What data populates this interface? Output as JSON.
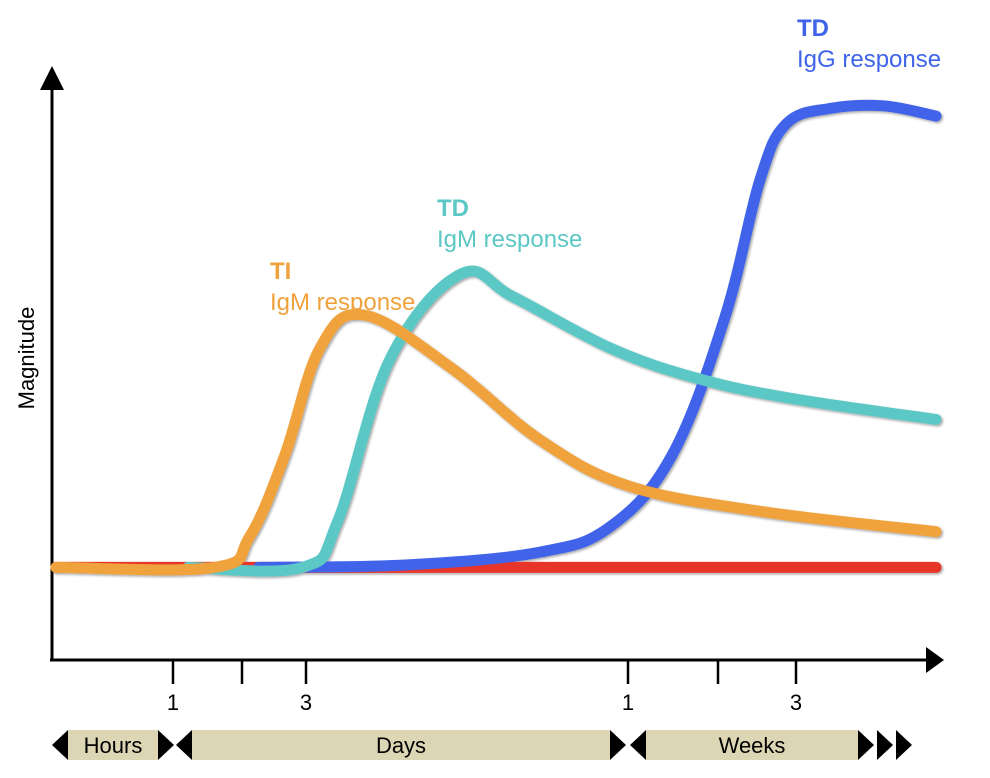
{
  "chart_data": {
    "type": "line",
    "title": "",
    "ylabel": "Magnitude",
    "xlabel": "",
    "x_ticks": [
      {
        "label": "1",
        "scale": "hours"
      },
      {
        "label": "",
        "scale": "days"
      },
      {
        "label": "3",
        "scale": "days"
      },
      {
        "label": "1",
        "scale": "weeks"
      },
      {
        "label": "",
        "scale": "weeks"
      },
      {
        "label": "3",
        "scale": "weeks"
      }
    ],
    "time_segments": [
      {
        "name": "hours",
        "label": "Hours"
      },
      {
        "name": "days",
        "label": "Days"
      },
      {
        "name": "weeks",
        "label": "Weeks"
      }
    ],
    "x_domain": [
      0,
      10
    ],
    "y_domain": [
      0,
      10
    ],
    "series": [
      {
        "name": "baseline",
        "title": "",
        "subtitle": "",
        "color": "#e8352b",
        "points": [
          [
            0.0,
            0.6
          ],
          [
            10.0,
            0.6
          ]
        ]
      },
      {
        "name": "TD IgG response",
        "title": "TD",
        "subtitle": "IgG response",
        "color": "#3f64ea",
        "points": [
          [
            2.3,
            0.6
          ],
          [
            4.0,
            0.65
          ],
          [
            5.5,
            0.9
          ],
          [
            6.3,
            1.4
          ],
          [
            7.0,
            2.8
          ],
          [
            7.6,
            5.5
          ],
          [
            8.0,
            8.2
          ],
          [
            8.3,
            9.3
          ],
          [
            8.8,
            9.6
          ],
          [
            9.4,
            9.65
          ],
          [
            10.0,
            9.45
          ]
        ]
      },
      {
        "name": "TD IgM response",
        "title": "TD",
        "subtitle": "IgM response",
        "color": "#5cc8c6",
        "points": [
          [
            1.5,
            0.6
          ],
          [
            2.8,
            0.6
          ],
          [
            3.2,
            1.5
          ],
          [
            3.8,
            4.7
          ],
          [
            4.6,
            6.35
          ],
          [
            5.2,
            5.9
          ],
          [
            6.3,
            4.9
          ],
          [
            7.3,
            4.3
          ],
          [
            8.4,
            3.9
          ],
          [
            10.0,
            3.5
          ]
        ]
      },
      {
        "name": "TI IgM response",
        "title": "TI",
        "subtitle": "IgM response",
        "color": "#f0a23c",
        "points": [
          [
            0.0,
            0.6
          ],
          [
            1.8,
            0.6
          ],
          [
            2.2,
            1.2
          ],
          [
            2.6,
            2.8
          ],
          [
            3.0,
            4.9
          ],
          [
            3.5,
            5.55
          ],
          [
            4.5,
            4.5
          ],
          [
            5.5,
            3.1
          ],
          [
            6.5,
            2.2
          ],
          [
            8.0,
            1.7
          ],
          [
            10.0,
            1.3
          ]
        ]
      }
    ]
  }
}
